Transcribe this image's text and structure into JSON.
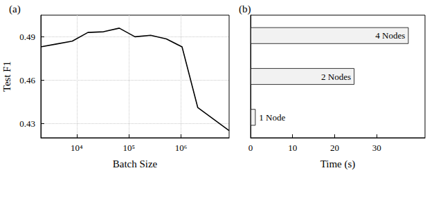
{
  "chart_data": [
    {
      "type": "line",
      "title": "(a)",
      "x_label": "Batch Size",
      "y_label": "Test F1",
      "x": [
        2048,
        4096,
        8192,
        16384,
        32768,
        65536,
        131072,
        262144,
        524288,
        1048576,
        2097152,
        4194304,
        8388608
      ],
      "values": [
        0.483,
        0.485,
        0.487,
        0.493,
        0.4935,
        0.496,
        0.49,
        0.491,
        0.4885,
        0.483,
        0.441,
        0.433,
        0.425
      ],
      "color": "#000000",
      "log": "x",
      "xlim": [
        2048,
        8388608
      ],
      "xticks": [
        {
          "value": 10000,
          "label": "10⁴"
        },
        {
          "value": 100000,
          "label": "10⁵"
        },
        {
          "value": 1000000,
          "label": "10⁶"
        }
      ],
      "ylim": [
        0.42,
        0.505
      ],
      "yticks": [
        0.43,
        0.46,
        0.49
      ],
      "grid": true
    },
    {
      "type": "bar",
      "title": "(b)",
      "x_label": "Time (s)",
      "orientation": "horizontal",
      "categories": [
        "1 Node",
        "2 Nodes",
        "4 Nodes"
      ],
      "values": [
        1.2,
        24.7,
        37.6
      ],
      "color": "#f2f2f2",
      "xlim": [
        0,
        41.5
      ],
      "xticks": [
        0,
        10,
        20,
        30
      ],
      "tick_labels": "x",
      "grid": false
    }
  ]
}
